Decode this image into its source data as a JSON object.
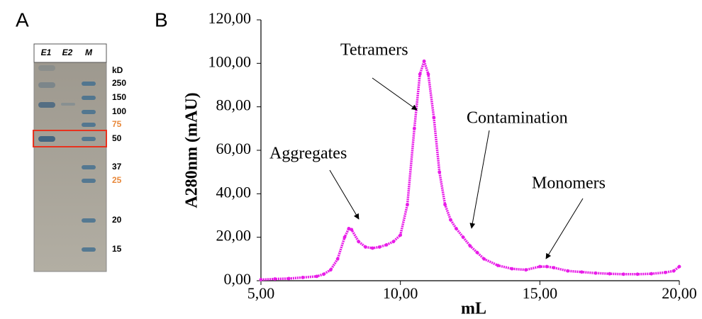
{
  "panels": [
    "A",
    "B"
  ],
  "gel": {
    "lanes": [
      "E1",
      "E2",
      "M"
    ],
    "unit": "kD",
    "markers": [
      250,
      150,
      100,
      75,
      50,
      37,
      25,
      20,
      15
    ]
  },
  "chart_data": {
    "type": "line",
    "ylabel": "A280nm (mAU)",
    "xlabel": "mL",
    "annotations": [
      "Tetramers",
      "Aggregates",
      "Contamination",
      "Monomers"
    ],
    "xlim": [
      5,
      20
    ],
    "xticks": [
      {
        "value": 5,
        "label": "5,00"
      },
      {
        "value": 10,
        "label": "10,00"
      },
      {
        "value": 15,
        "label": "15,00"
      },
      {
        "value": 20,
        "label": "20,00"
      }
    ],
    "ylim": [
      0,
      120
    ],
    "yticks": [
      {
        "value": 0,
        "label": "0,00"
      },
      {
        "value": 20,
        "label": "20,00"
      },
      {
        "value": 40,
        "label": "40,00"
      },
      {
        "value": 60,
        "label": "60,00"
      },
      {
        "value": 80,
        "label": "80,00"
      },
      {
        "value": 100,
        "label": "100,00"
      },
      {
        "value": 120,
        "label": "120,00"
      }
    ],
    "color": "#e81ce8",
    "x": [
      5.0,
      5.5,
      6.0,
      6.5,
      7.0,
      7.25,
      7.5,
      7.75,
      8.0,
      8.15,
      8.25,
      8.5,
      8.75,
      9.0,
      9.25,
      9.5,
      9.75,
      10.0,
      10.25,
      10.5,
      10.7,
      10.85,
      11.0,
      11.2,
      11.4,
      11.6,
      11.8,
      12.0,
      12.25,
      12.5,
      12.75,
      13.0,
      13.5,
      14.0,
      14.5,
      15.0,
      15.25,
      15.5,
      16.0,
      16.5,
      17.0,
      17.5,
      18.0,
      18.5,
      19.0,
      19.5,
      19.8,
      20.0
    ],
    "values": [
      0.5,
      0.8,
      1,
      1.5,
      2,
      3,
      5,
      10,
      20,
      24,
      23.5,
      18,
      15.5,
      15,
      15.5,
      16.5,
      18,
      21,
      35,
      70,
      95,
      101,
      95,
      75,
      50,
      35,
      28,
      24,
      20,
      16,
      13,
      10,
      7,
      5.5,
      5,
      6.5,
      6.5,
      6,
      4.5,
      4,
      3.5,
      3.2,
      3,
      3,
      3.2,
      3.8,
      4.5,
      6.5
    ]
  }
}
